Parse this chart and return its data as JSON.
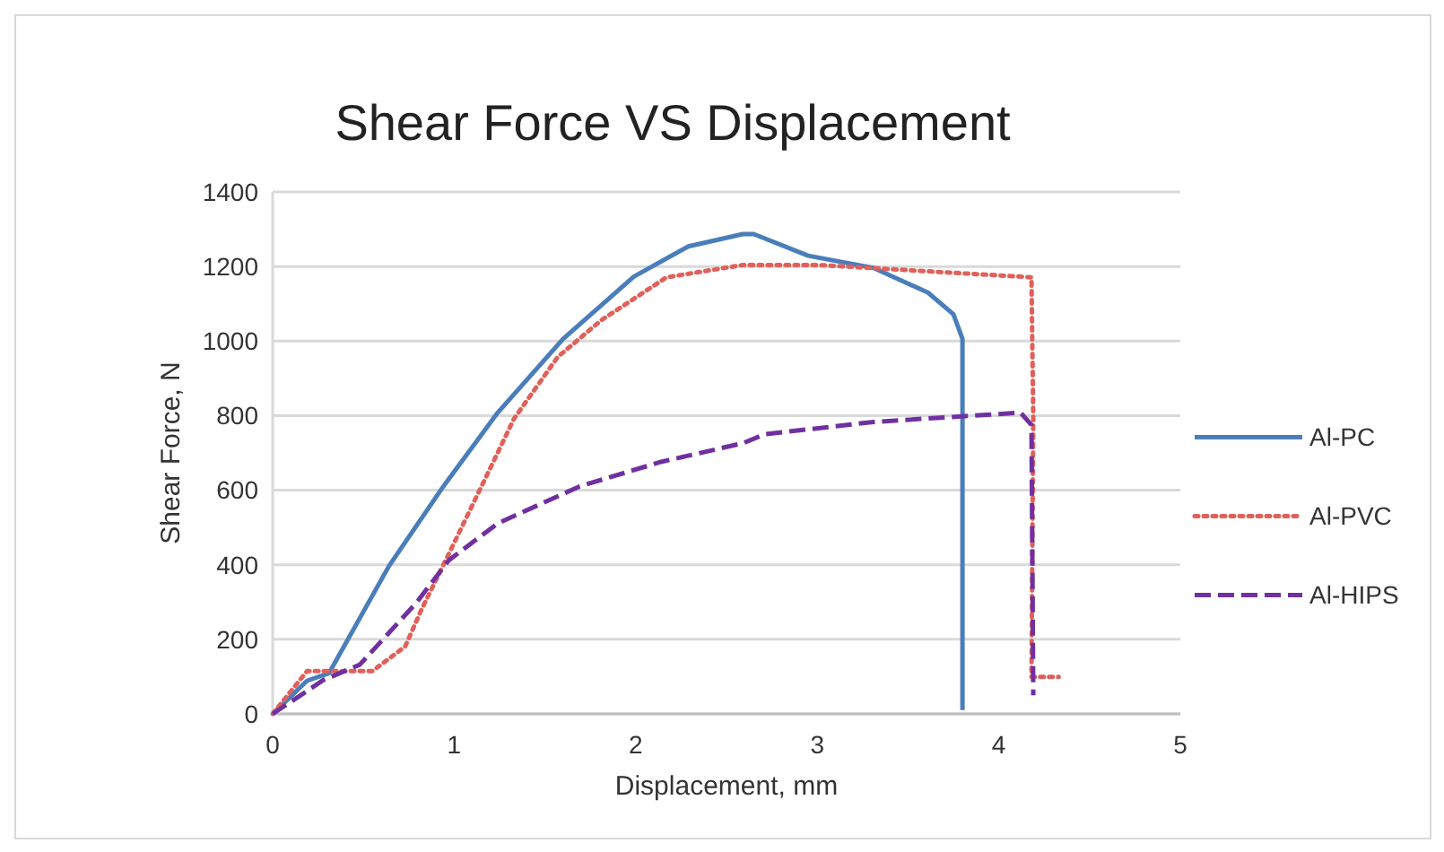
{
  "chart_data": {
    "type": "line",
    "title": "Shear Force VS Displacement",
    "xlabel": "Displacement, mm",
    "ylabel": "Shear Force, N",
    "xlim": [
      0,
      5
    ],
    "xticks": [
      0,
      1,
      2,
      3,
      4,
      5
    ],
    "ylim": [
      0,
      1400
    ],
    "yticks": [
      0,
      200,
      400,
      600,
      800,
      1000,
      1200,
      1400
    ],
    "grid": "y",
    "legend": "right",
    "series": [
      {
        "name": "Al-PC",
        "color": "#4a7ebb",
        "line_style": "solid",
        "x": [
          0,
          0.19,
          0.31,
          0.64,
          0.94,
          1.24,
          1.6,
          1.99,
          2.29,
          2.59,
          2.65,
          2.95,
          3.31,
          3.61,
          3.75,
          3.8,
          3.8
        ],
        "values": [
          0,
          89,
          109,
          396,
          610,
          808,
          1006,
          1173,
          1254,
          1287,
          1287,
          1229,
          1196,
          1130,
          1072,
          1006,
          10
        ]
      },
      {
        "name": "Al-PVC",
        "color": "#e0605a",
        "line_style": "dotted",
        "x": [
          0,
          0.19,
          0.31,
          0.55,
          0.73,
          0.82,
          0.97,
          1.15,
          1.33,
          1.57,
          1.81,
          2.17,
          2.59,
          3.01,
          4.18,
          4.19,
          4.18,
          4.33
        ],
        "values": [
          0,
          115,
          115,
          115,
          181,
          280,
          429,
          610,
          792,
          957,
          1056,
          1171,
          1204,
          1204,
          1171,
          792,
          99,
          99
        ]
      },
      {
        "name": "Al-HIPS",
        "color": "#7030a0",
        "line_style": "dashed",
        "x": [
          0,
          0.28,
          0.48,
          0.79,
          0.97,
          1.24,
          1.69,
          2.14,
          2.59,
          2.71,
          3.31,
          4.12,
          4.18,
          4.19
        ],
        "values": [
          0,
          91,
          132,
          297,
          412,
          511,
          610,
          676,
          726,
          750,
          783,
          808,
          775,
          50
        ]
      }
    ]
  }
}
